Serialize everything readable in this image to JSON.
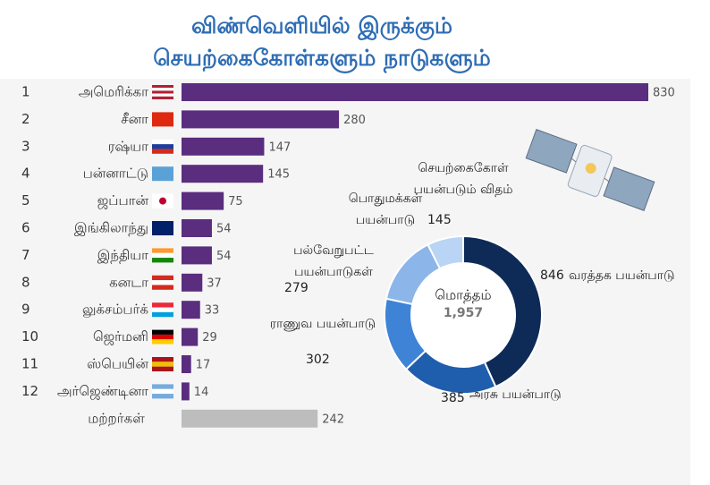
{
  "chart_data": [
    {
      "type": "bar",
      "orientation": "horizontal",
      "title": [
        "விண்வெளியில் இருக்கும்",
        "செயற்கைகோள்களும் நாடுகளும்"
      ],
      "ranks": [
        1,
        2,
        3,
        4,
        5,
        6,
        7,
        8,
        9,
        10,
        11,
        12,
        null
      ],
      "categories": [
        "அமெரிக்கா",
        "சீனா",
        "ரஷ்யா",
        "பன்னாட்டு",
        "ஜப்பான்",
        "இங்கிலாந்து",
        "இந்தியா",
        "கனடா",
        "லுக்சம்பர்க்",
        "ஜெர்மனி",
        "ஸ்பெயின்",
        "அர்ஜெண்டினா",
        "மற்றர்கள்"
      ],
      "values": [
        830,
        280,
        147,
        145,
        75,
        54,
        54,
        37,
        33,
        29,
        17,
        14,
        242
      ],
      "colors": [
        "#5a2d7f",
        "#5a2d7f",
        "#5a2d7f",
        "#5a2d7f",
        "#5a2d7f",
        "#5a2d7f",
        "#5a2d7f",
        "#5a2d7f",
        "#5a2d7f",
        "#5a2d7f",
        "#5a2d7f",
        "#5a2d7f",
        "#bdbdbd"
      ]
    },
    {
      "type": "pie",
      "donut": true,
      "title": "செயற்கைகோள் பயன்படும் விதம்",
      "center_label": "மொத்தம்",
      "total": {
        "value": 1957,
        "label": "1,957"
      },
      "categories": [
        "வரத்தக பயன்பாடு",
        "அரசு பயன்பாடு",
        "ராணுவ பயன்பாடு",
        "பல்வேறுபட்ட பயன்பாடுகள்",
        "பொதுமக்கள் பயன்பாடு"
      ],
      "values": [
        846,
        385,
        302,
        279,
        145
      ],
      "colors": [
        "#0e2b57",
        "#1f5ead",
        "#3f83d6",
        "#8cb5e9",
        "#b9d4f4"
      ]
    }
  ]
}
